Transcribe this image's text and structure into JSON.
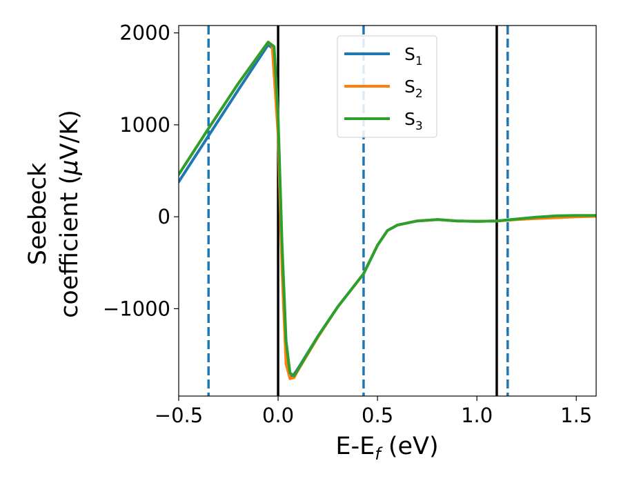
{
  "chart_data": {
    "type": "line",
    "xlabel": {
      "main": "E-E",
      "sub": "f",
      "suffix": " (eV)"
    },
    "ylabel": {
      "line1": "Seebeck",
      "line2_pre": "coefficient  (",
      "line2_mu": "μ",
      "line2_post": "V/K)"
    },
    "xlim": [
      -0.5,
      1.6
    ],
    "ylim": [
      -1950,
      2080
    ],
    "xticks": [
      {
        "value": -0.5,
        "label": "−0.5"
      },
      {
        "value": 0.0,
        "label": "0.0"
      },
      {
        "value": 0.5,
        "label": "0.5"
      },
      {
        "value": 1.0,
        "label": "1.0"
      },
      {
        "value": 1.5,
        "label": "1.5"
      }
    ],
    "yticks": [
      {
        "value": 2000,
        "label": "2000"
      },
      {
        "value": 1000,
        "label": "1000"
      },
      {
        "value": 0,
        "label": "0"
      },
      {
        "value": -1000,
        "label": "−1000"
      }
    ],
    "vlines": [
      {
        "x": -0.35,
        "style": "dashed",
        "color": "#1f77b4"
      },
      {
        "x": 0.0,
        "style": "solid",
        "color": "#000000"
      },
      {
        "x": 0.43,
        "style": "dashed",
        "color": "#1f77b4"
      },
      {
        "x": 1.1,
        "style": "solid",
        "color": "#000000"
      },
      {
        "x": 1.155,
        "style": "dashed",
        "color": "#1f77b4"
      }
    ],
    "legend_position": "top-center",
    "series": [
      {
        "name": {
          "main": "S",
          "sub": "1"
        },
        "color": "#1f77b4",
        "x": [
          -0.5,
          -0.35,
          -0.2,
          -0.05,
          -0.02,
          0.0,
          0.02,
          0.04,
          0.06,
          0.075,
          0.1,
          0.2,
          0.3,
          0.43,
          0.5,
          0.55,
          0.6,
          0.7,
          0.8,
          0.9,
          1.0,
          1.1,
          1.2,
          1.3,
          1.4,
          1.5,
          1.6
        ],
        "y": [
          380,
          880,
          1380,
          1870,
          1820,
          1000,
          -400,
          -1450,
          -1730,
          -1730,
          -1650,
          -1300,
          -980,
          -620,
          -310,
          -150,
          -90,
          -45,
          -30,
          -45,
          -50,
          -45,
          -25,
          -5,
          5,
          10,
          10
        ]
      },
      {
        "name": {
          "main": "S",
          "sub": "2"
        },
        "color": "#ff7f0e",
        "x": [
          -0.5,
          -0.35,
          -0.2,
          -0.05,
          -0.03,
          0.0,
          0.02,
          0.04,
          0.06,
          0.08,
          0.1,
          0.2,
          0.3,
          0.43,
          0.5,
          0.55,
          0.6,
          0.7,
          0.8,
          0.9,
          1.0,
          1.1,
          1.2,
          1.3,
          1.4,
          1.5,
          1.6
        ],
        "y": [
          460,
          960,
          1450,
          1900,
          1860,
          900,
          -600,
          -1600,
          -1760,
          -1750,
          -1670,
          -1310,
          -980,
          -620,
          -310,
          -150,
          -90,
          -45,
          -30,
          -45,
          -50,
          -45,
          -30,
          -20,
          -10,
          0,
          5
        ]
      },
      {
        "name": {
          "main": "S",
          "sub": "3"
        },
        "color": "#2ca02c",
        "x": [
          -0.5,
          -0.35,
          -0.2,
          -0.05,
          -0.02,
          0.0,
          0.02,
          0.04,
          0.06,
          0.08,
          0.1,
          0.2,
          0.3,
          0.43,
          0.5,
          0.55,
          0.6,
          0.7,
          0.8,
          0.9,
          1.0,
          1.1,
          1.2,
          1.3,
          1.4,
          1.5,
          1.6
        ],
        "y": [
          460,
          960,
          1450,
          1900,
          1850,
          1100,
          -300,
          -1350,
          -1700,
          -1730,
          -1660,
          -1300,
          -980,
          -620,
          -310,
          -150,
          -90,
          -45,
          -30,
          -45,
          -50,
          -45,
          -25,
          -5,
          10,
          15,
          15
        ]
      }
    ]
  }
}
